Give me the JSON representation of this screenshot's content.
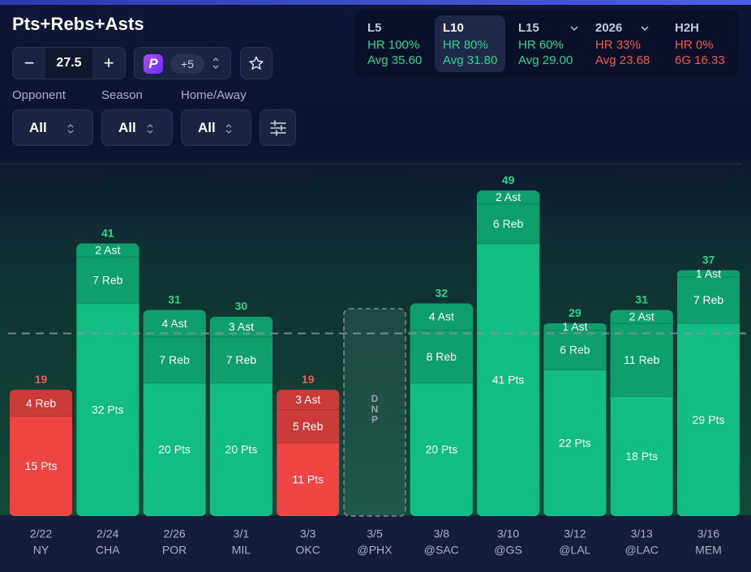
{
  "title": "Pts+Rebs+Asts",
  "line": {
    "value": "27.5",
    "minus": "−",
    "plus": "+"
  },
  "book": {
    "logo_letter": "P",
    "badge": "+5",
    "icon": "prizepicks-logo-icon"
  },
  "filters": [
    {
      "label": "Opponent",
      "value": "All"
    },
    {
      "label": "Season",
      "value": "All"
    },
    {
      "label": "Home/Away",
      "value": "All"
    }
  ],
  "splits": [
    {
      "name": "L5",
      "hr": "HR 100%",
      "avg": "Avg 35.60",
      "status": "green",
      "active": false,
      "dropdown": false
    },
    {
      "name": "L10",
      "hr": "HR 80%",
      "avg": "Avg 31.80",
      "status": "green",
      "active": true,
      "dropdown": false
    },
    {
      "name": "L15",
      "hr": "HR 60%",
      "avg": "Avg 29.00",
      "status": "green",
      "active": false,
      "dropdown": true
    },
    {
      "name": "2026",
      "hr": "HR 33%",
      "avg": "Avg 23.68",
      "status": "red",
      "active": false,
      "dropdown": true
    },
    {
      "name": "H2H",
      "hr": "HR 0%",
      "avg": "6G 16.33",
      "status": "red",
      "active": false,
      "dropdown": false
    }
  ],
  "colors": {
    "over": "#12bd83",
    "over_dark": "#0f9f6c",
    "over_label": "#2bd48f",
    "under": "#ef4444",
    "under_dark": "#cc3a3a",
    "under_label": "#f05a52",
    "dnp_border": "#7f8a95",
    "dnp_text": "#9aa3ad"
  },
  "chart_data": {
    "type": "bar",
    "stacked": true,
    "line_value": 27.5,
    "ylim": [
      0,
      56
    ],
    "categories": [
      "2/22 NY",
      "2/24 CHA",
      "2/26 POR",
      "3/1 MIL",
      "3/3 OKC",
      "3/5 @PHX",
      "3/8 @SAC",
      "3/10 @GS",
      "3/12 @LAL",
      "3/13 @LAC",
      "3/16 MEM"
    ],
    "games": [
      {
        "date": "2/22",
        "opp": "NY",
        "total": 19,
        "pts": 15,
        "reb": 4,
        "ast": 0,
        "dnp": false
      },
      {
        "date": "2/24",
        "opp": "CHA",
        "total": 41,
        "pts": 32,
        "reb": 7,
        "ast": 2,
        "dnp": false
      },
      {
        "date": "2/26",
        "opp": "POR",
        "total": 31,
        "pts": 20,
        "reb": 7,
        "ast": 4,
        "dnp": false
      },
      {
        "date": "3/1",
        "opp": "MIL",
        "total": 30,
        "pts": 20,
        "reb": 7,
        "ast": 3,
        "dnp": false
      },
      {
        "date": "3/3",
        "opp": "OKC",
        "total": 19,
        "pts": 11,
        "reb": 5,
        "ast": 3,
        "dnp": false
      },
      {
        "date": "3/5",
        "opp": "@PHX",
        "total": null,
        "pts": 0,
        "reb": 0,
        "ast": 0,
        "dnp": true,
        "dnp_label": "DNP"
      },
      {
        "date": "3/8",
        "opp": "@SAC",
        "total": 32,
        "pts": 20,
        "reb": 8,
        "ast": 4,
        "dnp": false
      },
      {
        "date": "3/10",
        "opp": "@GS",
        "total": 49,
        "pts": 41,
        "reb": 6,
        "ast": 2,
        "dnp": false
      },
      {
        "date": "3/12",
        "opp": "@LAL",
        "total": 29,
        "pts": 22,
        "reb": 6,
        "ast": 1,
        "dnp": false
      },
      {
        "date": "3/13",
        "opp": "@LAC",
        "total": 31,
        "pts": 18,
        "reb": 11,
        "ast": 2,
        "dnp": false
      },
      {
        "date": "3/16",
        "opp": "MEM",
        "total": 37,
        "pts": 29,
        "reb": 7,
        "ast": 1,
        "dnp": false
      }
    ],
    "segment_suffix": {
      "pts": "Pts",
      "reb": "Reb",
      "ast": "Ast"
    }
  }
}
